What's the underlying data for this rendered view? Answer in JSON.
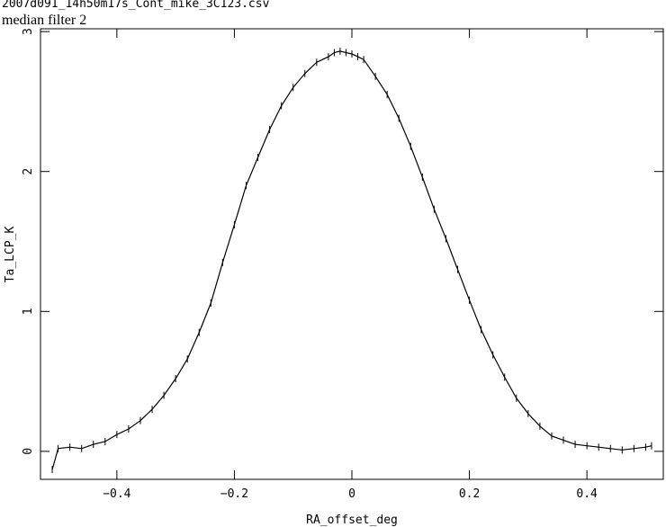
{
  "chart_data": {
    "type": "scatter",
    "title": "2007d091_14h50m17s_Cont_mike_3C123.csv",
    "subtitle": "median filter 2",
    "xlabel": "RA_offset_deg",
    "ylabel": "Ta_LCP_K",
    "xlim": [
      -0.53,
      0.53
    ],
    "ylim": [
      -0.2,
      3.02
    ],
    "xticks": [
      -0.4,
      -0.2,
      0,
      0.2,
      0.4
    ],
    "xtick_labels": [
      "−0.4",
      "−0.2",
      "0",
      "0.2",
      "0.4"
    ],
    "yticks": [
      0,
      1,
      2,
      3
    ],
    "ytick_labels": [
      "0",
      "1",
      "2",
      "3"
    ],
    "grid": false,
    "legend": "none",
    "series": [
      {
        "x": [
          -0.51,
          -0.5,
          -0.48,
          -0.46,
          -0.44,
          -0.42,
          -0.4,
          -0.38,
          -0.36,
          -0.34,
          -0.32,
          -0.3,
          -0.28,
          -0.26,
          -0.24,
          -0.22,
          -0.2,
          -0.18,
          -0.16,
          -0.14,
          -0.12,
          -0.1,
          -0.08,
          -0.06,
          -0.04,
          -0.03,
          -0.02,
          -0.01,
          0,
          0.01,
          0.02,
          0.04,
          0.06,
          0.08,
          0.1,
          0.12,
          0.14,
          0.16,
          0.18,
          0.2,
          0.22,
          0.24,
          0.26,
          0.28,
          0.3,
          0.32,
          0.34,
          0.36,
          0.38,
          0.4,
          0.42,
          0.44,
          0.46,
          0.48,
          0.5,
          0.51
        ],
        "y": [
          -0.13,
          0.02,
          0.03,
          0.02,
          0.05,
          0.07,
          0.12,
          0.16,
          0.22,
          0.3,
          0.4,
          0.52,
          0.66,
          0.85,
          1.06,
          1.35,
          1.62,
          1.9,
          2.1,
          2.3,
          2.47,
          2.6,
          2.7,
          2.78,
          2.82,
          2.85,
          2.86,
          2.85,
          2.84,
          2.82,
          2.8,
          2.68,
          2.55,
          2.38,
          2.18,
          1.96,
          1.73,
          1.52,
          1.3,
          1.08,
          0.87,
          0.69,
          0.53,
          0.38,
          0.27,
          0.18,
          0.11,
          0.08,
          0.05,
          0.04,
          0.03,
          0.02,
          0.01,
          0.02,
          0.03,
          0.04
        ]
      }
    ]
  }
}
